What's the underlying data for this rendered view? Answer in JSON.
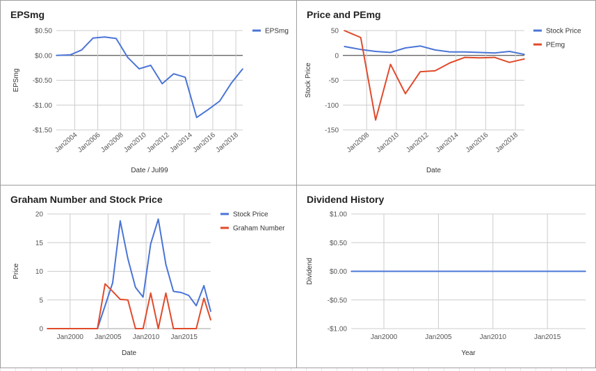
{
  "colors": {
    "blue": "#4a74d6",
    "red": "#e04a2a",
    "grid": "#cccccc",
    "zero": "#555555",
    "text": "#555555"
  },
  "chart_data": [
    {
      "id": "eps",
      "type": "line",
      "title": "EPSmg",
      "xlabel": "Date / Jul99",
      "ylabel": "EPSmg",
      "x_axis": "time",
      "xlim": [
        2002.4,
        2018.6
      ],
      "ylim": [
        -1.5,
        0.5
      ],
      "x_ticks": [
        2004,
        2006,
        2008,
        2010,
        2012,
        2014,
        2016,
        2018
      ],
      "x_tick_labels": [
        "Jan2004",
        "Jan2006",
        "Jan2008",
        "Jan2010",
        "Jan2012",
        "Jan2014",
        "Jan2016",
        "Jan2018"
      ],
      "y_ticks": [
        -1.5,
        -1.0,
        -0.5,
        0.0,
        0.5
      ],
      "y_tick_labels": [
        "-$1.50",
        "-$1.00",
        "-$0.50",
        "$0.00",
        "$0.50"
      ],
      "rotate_x_labels": true,
      "grid": true,
      "legend_position": "right",
      "series": [
        {
          "name": "EPSmg",
          "color": "#4a74d6",
          "x": [
            2002.4,
            2003.6,
            2004.6,
            2005.6,
            2006.6,
            2007.6,
            2008.6,
            2009.6,
            2010.6,
            2011.6,
            2012.6,
            2013.6,
            2014.6,
            2015.6,
            2016.6,
            2017.6,
            2018.6
          ],
          "values": [
            0.0,
            0.01,
            0.11,
            0.35,
            0.37,
            0.34,
            -0.04,
            -0.27,
            -0.2,
            -0.57,
            -0.37,
            -0.44,
            -1.25,
            -1.09,
            -0.92,
            -0.56,
            -0.27
          ]
        }
      ]
    },
    {
      "id": "price",
      "type": "line",
      "title": "Price and PEmg",
      "xlabel": "Date",
      "ylabel": "Stock Price",
      "x_axis": "time",
      "xlim": [
        2006.4,
        2018.6
      ],
      "ylim": [
        -150,
        50
      ],
      "x_ticks": [
        2008,
        2010,
        2012,
        2014,
        2016,
        2018
      ],
      "x_tick_labels": [
        "Jan2008",
        "Jan2010",
        "Jan2012",
        "Jan2014",
        "Jan2016",
        "Jan2018"
      ],
      "y_ticks": [
        -150,
        -100,
        -50,
        0,
        50
      ],
      "y_tick_labels": [
        "-150",
        "-100",
        "-50",
        "0",
        "50"
      ],
      "rotate_x_labels": true,
      "grid": true,
      "legend_position": "right",
      "series": [
        {
          "name": "Stock Price",
          "color": "#4a74d6",
          "x": [
            2006.5,
            2007.6,
            2008.6,
            2009.6,
            2010.6,
            2011.6,
            2012.6,
            2013.6,
            2014.6,
            2015.6,
            2016.6,
            2017.6,
            2018.6
          ],
          "values": [
            18,
            12,
            8,
            6,
            15,
            19,
            11,
            7,
            7,
            6,
            5,
            8,
            2
          ]
        },
        {
          "name": "PEmg",
          "color": "#e04a2a",
          "x": [
            2006.5,
            2007.6,
            2008.6,
            2009.6,
            2010.6,
            2011.6,
            2012.6,
            2013.6,
            2014.6,
            2015.6,
            2016.6,
            2017.6,
            2018.6
          ],
          "values": [
            50,
            36,
            -130,
            -18,
            -77,
            -33,
            -31,
            -15,
            -4,
            -5,
            -4,
            -14,
            -7
          ]
        }
      ]
    },
    {
      "id": "graham",
      "type": "line",
      "title": "Graham Number and Stock Price",
      "xlabel": "Date",
      "ylabel": "Price",
      "x_axis": "time",
      "xlim": [
        1997.0,
        2018.5
      ],
      "ylim": [
        0,
        20
      ],
      "x_ticks": [
        2000,
        2005,
        2010,
        2015
      ],
      "x_tick_labels": [
        "Jan2000",
        "Jan2005",
        "Jan2010",
        "Jan2015"
      ],
      "y_ticks": [
        0,
        5,
        10,
        15,
        20
      ],
      "y_tick_labels": [
        "0",
        "5",
        "10",
        "15",
        "20"
      ],
      "rotate_x_labels": false,
      "grid": true,
      "legend_position": "right",
      "series": [
        {
          "name": "Stock Price",
          "color": "#4a74d6",
          "x": [
            1997.0,
            2002.6,
            2003.6,
            2004.6,
            2005.6,
            2006.6,
            2007.6,
            2008.6,
            2009.6,
            2010.6,
            2011.6,
            2012.6,
            2013.6,
            2014.6,
            2015.6,
            2016.6,
            2017.6,
            2018.5
          ],
          "values": [
            0,
            0,
            0,
            4,
            8,
            18.8,
            12.2,
            7.2,
            5.5,
            14.8,
            19.1,
            11.2,
            6.5,
            6.3,
            5.8,
            4,
            7.5,
            3
          ]
        },
        {
          "name": "Graham Number",
          "color": "#e04a2a",
          "x": [
            1997.0,
            2002.6,
            2003.6,
            2004.6,
            2005.6,
            2006.6,
            2007.6,
            2008.6,
            2009.6,
            2010.6,
            2011.6,
            2012.6,
            2013.6,
            2014.6,
            2015.6,
            2016.6,
            2017.6,
            2018.5
          ],
          "values": [
            0,
            0,
            0,
            7.8,
            6.5,
            5.1,
            5,
            0,
            0,
            6.2,
            0,
            6.2,
            0,
            0,
            0,
            0,
            5.3,
            1.5
          ]
        }
      ]
    },
    {
      "id": "dividend",
      "type": "line",
      "title": "Dividend History",
      "xlabel": "Year",
      "ylabel": "Dividend",
      "x_axis": "time",
      "xlim": [
        1997.0,
        2018.5
      ],
      "ylim": [
        -1,
        1
      ],
      "x_ticks": [
        2000,
        2005,
        2010,
        2015
      ],
      "x_tick_labels": [
        "Jan2000",
        "Jan2005",
        "Jan2010",
        "Jan2015"
      ],
      "y_ticks": [
        -1,
        -0.5,
        0,
        0.5,
        1
      ],
      "y_tick_labels": [
        "-$1.00",
        "-$0.50",
        "$0.00",
        "$0.50",
        "$1.00"
      ],
      "rotate_x_labels": false,
      "grid": true,
      "legend_position": "none",
      "series": [
        {
          "name": "",
          "color": "#4a74d6",
          "x": [
            1997.0,
            2018.5
          ],
          "values": [
            0,
            0
          ]
        }
      ]
    }
  ]
}
